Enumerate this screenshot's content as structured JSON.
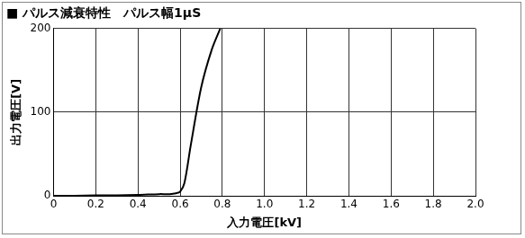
{
  "chart_data": {
    "type": "line",
    "title": "■ パルス減衰特性　パルス幅1μS",
    "x_label": "入力電圧[kV]",
    "y_label": "出力電圧[V]",
    "x": [
      0,
      0.1,
      0.2,
      0.3,
      0.4,
      0.5,
      0.55,
      0.58,
      0.6,
      0.62,
      0.65,
      0.7,
      0.75,
      0.79
    ],
    "values": [
      0,
      0,
      0.5,
      0.5,
      1,
      2,
      2,
      3,
      5,
      15,
      60,
      130,
      175,
      200
    ],
    "color": "#000000",
    "xlim": [
      0,
      2.0
    ],
    "xticks": [
      0,
      0.2,
      0.4,
      0.6,
      0.8,
      {
        "value": 1,
        "label": "1.0"
      },
      1.2,
      1.4,
      1.6,
      1.8,
      {
        "value": 2,
        "label": "2.0"
      }
    ],
    "ylim": [
      0,
      200
    ],
    "yticks": [
      0,
      100,
      200
    ],
    "grid": true
  }
}
